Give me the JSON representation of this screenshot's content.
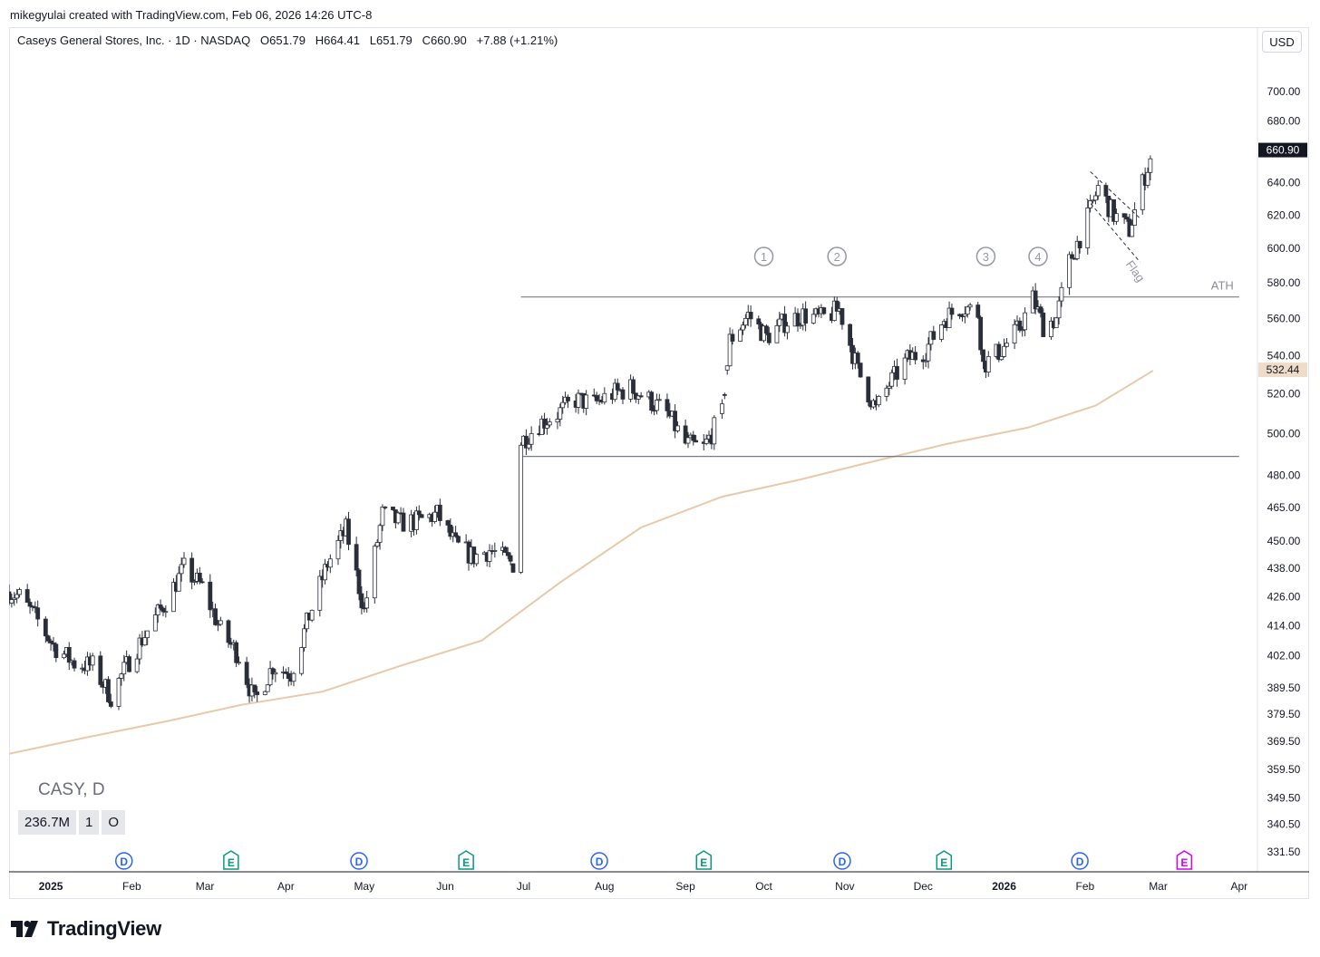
{
  "credit": "mikegyulai created with TradingView.com, Feb 06, 2026 14:26 UTC-8",
  "legend": {
    "name": "Caseys General Stores, Inc. · 1D · NASDAQ",
    "open_label": "O",
    "open": "651.79",
    "high_label": "H",
    "high": "664.41",
    "low_label": "L",
    "low": "651.79",
    "close_label": "C",
    "close": "660.90",
    "change": "+7.88 (+1.21%)"
  },
  "currency": "USD",
  "symbol_label": "CASY, D",
  "volume_boxes": [
    "236.7M",
    "1",
    "O"
  ],
  "brand": "TradingView",
  "colors": {
    "up": "#ffffff",
    "down": "#2a2e39",
    "wick": "#2a2e39",
    "ma": "#e8c9a9",
    "ma_label": "#efdcc8",
    "price_label": "#131722",
    "level": "#787b86",
    "event_dividend": "#2962ff",
    "event_earnings": "#089981",
    "event_future": "#d500f9"
  },
  "chart_data": {
    "type": "candlestick",
    "scale": "log",
    "ylim": [
      325,
      730
    ],
    "price_ticks": [
      "700.00",
      "680.00",
      "640.00",
      "620.00",
      "600.00",
      "580.00",
      "560.00",
      "540.00",
      "520.00",
      "500.00",
      "480.00",
      "465.00",
      "450.00",
      "438.00",
      "426.00",
      "414.00",
      "402.00",
      "389.50",
      "379.50",
      "369.50",
      "359.50",
      "349.50",
      "340.50",
      "331.50"
    ],
    "time_labels": [
      {
        "label": "2025",
        "date": "2025-01-01",
        "bold": true
      },
      {
        "label": "Feb",
        "date": "2025-02-01"
      },
      {
        "label": "Mar",
        "date": "2025-03-01"
      },
      {
        "label": "Apr",
        "date": "2025-04-01"
      },
      {
        "label": "May",
        "date": "2025-05-01"
      },
      {
        "label": "Jun",
        "date": "2025-06-01"
      },
      {
        "label": "Jul",
        "date": "2025-07-01"
      },
      {
        "label": "Aug",
        "date": "2025-08-01"
      },
      {
        "label": "Sep",
        "date": "2025-09-01"
      },
      {
        "label": "Oct",
        "date": "2025-10-01"
      },
      {
        "label": "Nov",
        "date": "2025-11-01"
      },
      {
        "label": "Dec",
        "date": "2025-12-01"
      },
      {
        "label": "2026",
        "date": "2026-01-01",
        "bold": true
      },
      {
        "label": "Feb",
        "date": "2026-02-01"
      },
      {
        "label": "Mar",
        "date": "2026-03-01"
      },
      {
        "label": "Apr",
        "date": "2026-04-01"
      }
    ],
    "date_range": [
      "2024-12-16",
      "2026-04-08"
    ],
    "price_path": [
      [
        "2024-12-16",
        428
      ],
      [
        "2024-12-20",
        426
      ],
      [
        "2024-12-27",
        416
      ],
      [
        "2025-01-02",
        406
      ],
      [
        "2025-01-10",
        399
      ],
      [
        "2025-01-17",
        398
      ],
      [
        "2025-01-24",
        386
      ],
      [
        "2025-01-31",
        400
      ],
      [
        "2025-02-07",
        412
      ],
      [
        "2025-02-14",
        424
      ],
      [
        "2025-02-21",
        438
      ],
      [
        "2025-02-28",
        430
      ],
      [
        "2025-03-07",
        412
      ],
      [
        "2025-03-14",
        402
      ],
      [
        "2025-03-20",
        384
      ],
      [
        "2025-03-27",
        398
      ],
      [
        "2025-04-03",
        395
      ],
      [
        "2025-04-10",
        418
      ],
      [
        "2025-04-17",
        440
      ],
      [
        "2025-04-24",
        455
      ],
      [
        "2025-05-01",
        420
      ],
      [
        "2025-05-08",
        462
      ],
      [
        "2025-05-15",
        458
      ],
      [
        "2025-05-22",
        459
      ],
      [
        "2025-05-29",
        462
      ],
      [
        "2025-06-05",
        448
      ],
      [
        "2025-06-12",
        443
      ],
      [
        "2025-06-18",
        446
      ],
      [
        "2025-06-24",
        442
      ],
      [
        "2025-06-27",
        440
      ],
      [
        "2025-06-30",
        496
      ],
      [
        "2025-07-07",
        505
      ],
      [
        "2025-07-14",
        510
      ],
      [
        "2025-07-21",
        517
      ],
      [
        "2025-07-28",
        515
      ],
      [
        "2025-08-04",
        520
      ],
      [
        "2025-08-11",
        523
      ],
      [
        "2025-08-18",
        517
      ],
      [
        "2025-08-25",
        510
      ],
      [
        "2025-09-01",
        495
      ],
      [
        "2025-09-08",
        493
      ],
      [
        "2025-09-15",
        510
      ],
      [
        "2025-09-18",
        548
      ],
      [
        "2025-09-25",
        562
      ],
      [
        "2025-10-02",
        550
      ],
      [
        "2025-10-09",
        558
      ],
      [
        "2025-10-16",
        562
      ],
      [
        "2025-10-23",
        560
      ],
      [
        "2025-10-30",
        565
      ],
      [
        "2025-11-06",
        532
      ],
      [
        "2025-11-13",
        512
      ],
      [
        "2025-11-18",
        525
      ],
      [
        "2025-11-25",
        538
      ],
      [
        "2025-12-02",
        543
      ],
      [
        "2025-12-09",
        560
      ],
      [
        "2025-12-16",
        567
      ],
      [
        "2025-12-22",
        563
      ],
      [
        "2025-12-24",
        535
      ],
      [
        "2025-12-31",
        543
      ],
      [
        "2026-01-07",
        555
      ],
      [
        "2026-01-12",
        571
      ],
      [
        "2026-01-16",
        556
      ],
      [
        "2026-01-21",
        560
      ],
      [
        "2026-01-26",
        592
      ],
      [
        "2026-02-02",
        618
      ],
      [
        "2026-02-06",
        637
      ],
      [
        "2026-02-12",
        620
      ],
      [
        "2026-02-18",
        611
      ],
      [
        "2026-02-24",
        645
      ],
      [
        "2026-02-27",
        660
      ]
    ],
    "candles_note": "candles generated daily between price_path points",
    "moving_average": [
      [
        "2024-12-16",
        365
      ],
      [
        "2025-01-15",
        371
      ],
      [
        "2025-02-15",
        377
      ],
      [
        "2025-03-15",
        383
      ],
      [
        "2025-04-15",
        388
      ],
      [
        "2025-05-15",
        398
      ],
      [
        "2025-06-15",
        408
      ],
      [
        "2025-07-15",
        432
      ],
      [
        "2025-08-15",
        456
      ],
      [
        "2025-09-15",
        470
      ],
      [
        "2025-10-15",
        478
      ],
      [
        "2025-11-10",
        486
      ],
      [
        "2025-12-10",
        495
      ],
      [
        "2026-01-10",
        503
      ],
      [
        "2026-02-05",
        514
      ],
      [
        "2026-02-27",
        532
      ]
    ],
    "current_price_label": "660.90",
    "ma_label": "532.44",
    "levels": [
      {
        "name": "ATH",
        "price": 572,
        "from": "2025-06-30",
        "to": "2026-04-01"
      },
      {
        "name": "",
        "price": 489,
        "from": "2025-06-30",
        "to": "2026-04-01"
      }
    ],
    "level_labels": {
      "ath": "ATH"
    },
    "touch_markers": [
      {
        "n": "1",
        "date": "2025-10-01"
      },
      {
        "n": "2",
        "date": "2025-10-29"
      },
      {
        "n": "3",
        "date": "2025-12-25"
      },
      {
        "n": "4",
        "date": "2026-01-14"
      }
    ],
    "flag": {
      "label": "Flag",
      "from": "2026-02-03",
      "to": "2026-02-22",
      "upper": [
        647,
        618
      ],
      "lower": [
        630,
        600
      ]
    },
    "events": [
      {
        "type": "D",
        "date": "2025-01-29"
      },
      {
        "type": "E",
        "date": "2025-03-11"
      },
      {
        "type": "D",
        "date": "2025-04-29"
      },
      {
        "type": "E",
        "date": "2025-06-09"
      },
      {
        "type": "D",
        "date": "2025-07-30"
      },
      {
        "type": "E",
        "date": "2025-09-08"
      },
      {
        "type": "D",
        "date": "2025-10-31"
      },
      {
        "type": "E",
        "date": "2025-12-09"
      },
      {
        "type": "D",
        "date": "2026-01-30"
      },
      {
        "type": "E-future",
        "date": "2026-03-11"
      }
    ]
  }
}
